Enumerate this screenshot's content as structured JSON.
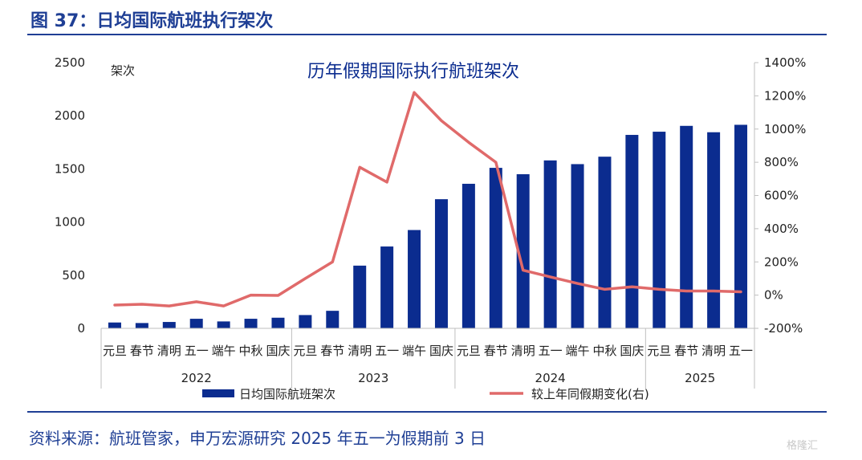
{
  "figure": {
    "title": "图 37：日均国际航班执行架次",
    "source": "资料来源：航班管家，申万宏源研究  2025 年五一为假期前 3 日",
    "watermark": "格隆汇"
  },
  "colors": {
    "bar": "#0b2c8f",
    "line": "#e06a6a",
    "accent": "#1f3f95"
  },
  "chart_data": {
    "type": "bar",
    "title": "历年假期国际执行航班架次",
    "y_left_unit": "架次",
    "y_left_ticks": [
      "0",
      "500",
      "1000",
      "1500",
      "2000",
      "2500"
    ],
    "y_right_ticks": [
      "-200%",
      "0%",
      "200%",
      "400%",
      "600%",
      "800%",
      "1000%",
      "1200%",
      "1400%"
    ],
    "ylim_left": [
      0,
      2500
    ],
    "ylim_right": [
      -200,
      1400
    ],
    "categories": [
      "元旦",
      "春节",
      "清明",
      "五一",
      "端午",
      "中秋",
      "国庆",
      "元旦",
      "春节",
      "清明",
      "五一",
      "端午",
      "国庆",
      "元旦",
      "春节",
      "清明",
      "五一",
      "端午",
      "中秋",
      "国庆",
      "元旦",
      "春节",
      "清明",
      "五一"
    ],
    "groups": [
      {
        "label": "2022",
        "count": 7
      },
      {
        "label": "2023",
        "count": 6
      },
      {
        "label": "2024",
        "count": 7
      },
      {
        "label": "2025",
        "count": 4
      }
    ],
    "series": [
      {
        "name": "日均国际航班架次",
        "type": "bar",
        "axis": "left",
        "values": [
          55,
          50,
          60,
          90,
          65,
          90,
          100,
          125,
          165,
          590,
          770,
          925,
          1215,
          1360,
          1510,
          1450,
          1580,
          1545,
          1615,
          1820,
          1850,
          1905,
          1845,
          1915
        ]
      },
      {
        "name": "较上年同假期变化(右)",
        "type": "line",
        "axis": "right",
        "values": [
          -60,
          -55,
          -65,
          -40,
          -65,
          0,
          -2,
          100,
          200,
          770,
          680,
          1220,
          1050,
          920,
          800,
          150,
          110,
          70,
          35,
          50,
          35,
          25,
          25,
          20
        ]
      }
    ],
    "grid": false,
    "legend": "bottom"
  }
}
